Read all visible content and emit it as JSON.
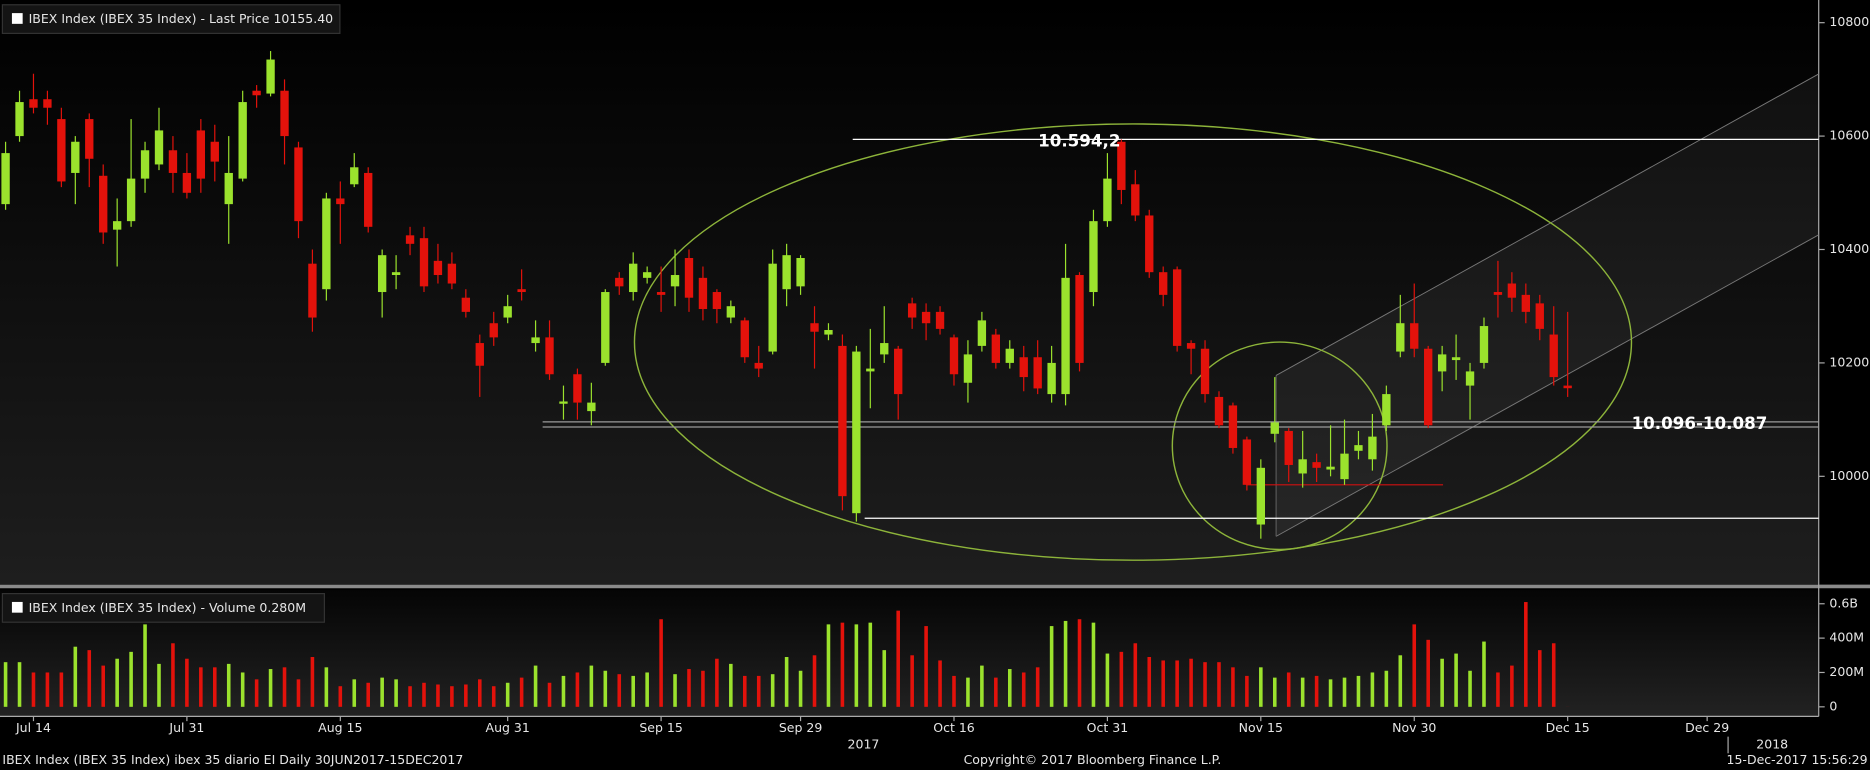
{
  "chart_data": [
    {
      "type": "candlestick",
      "title": "IBEX Index (IBEX 35 Index) - Last Price 10155.40",
      "x": [
        "2017-07-12",
        "2017-07-13",
        "2017-07-14",
        "2017-07-17",
        "2017-07-18",
        "2017-07-19",
        "2017-07-20",
        "2017-07-21",
        "2017-07-24",
        "2017-07-25",
        "2017-07-26",
        "2017-07-27",
        "2017-07-28",
        "2017-07-31",
        "2017-08-01",
        "2017-08-02",
        "2017-08-03",
        "2017-08-04",
        "2017-08-07",
        "2017-08-08",
        "2017-08-09",
        "2017-08-10",
        "2017-08-11",
        "2017-08-14",
        "2017-08-15",
        "2017-08-16",
        "2017-08-17",
        "2017-08-18",
        "2017-08-21",
        "2017-08-22",
        "2017-08-23",
        "2017-08-24",
        "2017-08-25",
        "2017-08-28",
        "2017-08-29",
        "2017-08-30",
        "2017-08-31",
        "2017-09-01",
        "2017-09-04",
        "2017-09-05",
        "2017-09-06",
        "2017-09-07",
        "2017-09-08",
        "2017-09-11",
        "2017-09-12",
        "2017-09-13",
        "2017-09-14",
        "2017-09-15",
        "2017-09-18",
        "2017-09-19",
        "2017-09-20",
        "2017-09-21",
        "2017-09-22",
        "2017-09-25",
        "2017-09-26",
        "2017-09-27",
        "2017-09-28",
        "2017-09-29",
        "2017-10-02",
        "2017-10-03",
        "2017-10-04",
        "2017-10-05",
        "2017-10-06",
        "2017-10-09",
        "2017-10-10",
        "2017-10-11",
        "2017-10-12",
        "2017-10-13",
        "2017-10-16",
        "2017-10-17",
        "2017-10-18",
        "2017-10-19",
        "2017-10-20",
        "2017-10-23",
        "2017-10-24",
        "2017-10-25",
        "2017-10-26",
        "2017-10-27",
        "2017-10-30",
        "2017-10-31",
        "2017-11-01",
        "2017-11-02",
        "2017-11-03",
        "2017-11-06",
        "2017-11-07",
        "2017-11-08",
        "2017-11-09",
        "2017-11-10",
        "2017-11-13",
        "2017-11-14",
        "2017-11-15",
        "2017-11-16",
        "2017-11-17",
        "2017-11-20",
        "2017-11-21",
        "2017-11-22",
        "2017-11-23",
        "2017-11-24",
        "2017-11-27",
        "2017-11-28",
        "2017-11-29",
        "2017-11-30",
        "2017-12-01",
        "2017-12-04",
        "2017-12-05",
        "2017-12-06",
        "2017-12-07",
        "2017-12-08",
        "2017-12-11",
        "2017-12-12",
        "2017-12-13",
        "2017-12-14",
        "2017-12-15"
      ],
      "open": [
        10480,
        10600,
        10665,
        10665,
        10630,
        10535,
        10630,
        10530,
        10435,
        10450,
        10525,
        10550,
        10575,
        10535,
        10610,
        10590,
        10480,
        10525,
        10680,
        10675,
        10680,
        10580,
        10375,
        10330,
        10490,
        10515,
        10535,
        10325,
        10355,
        10425,
        10420,
        10380,
        10375,
        10315,
        10235,
        10270,
        10280,
        10330,
        10235,
        10245,
        10128,
        10180,
        10115,
        10200,
        10350,
        10325,
        10350,
        10325,
        10335,
        10385,
        10350,
        10325,
        10280,
        10275,
        10200,
        10220,
        10330,
        10335,
        10270,
        10250,
        10230,
        9935,
        10185,
        10215,
        10225,
        10305,
        10290,
        10290,
        10245,
        10165,
        10230,
        10250,
        10200,
        10210,
        10210,
        10145,
        10145,
        10355,
        10325,
        10450,
        10590,
        10515,
        10460,
        10360,
        10365,
        10235,
        10225,
        10140,
        10125,
        10065,
        9915,
        10075,
        10080,
        10005,
        10025,
        10012,
        9995,
        10045,
        10030,
        10090,
        10220,
        10270,
        10225,
        10185,
        10205,
        10160,
        10200,
        10325,
        10340,
        10320,
        10305,
        10250,
        10160
      ],
      "high": [
        10590,
        10680,
        10710,
        10680,
        10650,
        10600,
        10640,
        10550,
        10490,
        10630,
        10590,
        10650,
        10600,
        10570,
        10630,
        10620,
        10600,
        10680,
        10690,
        10750,
        10700,
        10590,
        10400,
        10500,
        10520,
        10570,
        10545,
        10400,
        10390,
        10440,
        10440,
        10410,
        10395,
        10330,
        10250,
        10290,
        10320,
        10365,
        10275,
        10275,
        10160,
        10190,
        10165,
        10330,
        10360,
        10395,
        10370,
        10370,
        10400,
        10400,
        10370,
        10330,
        10310,
        10280,
        10230,
        10400,
        10410,
        10390,
        10300,
        10270,
        10250,
        10230,
        10260,
        10300,
        10230,
        10315,
        10305,
        10300,
        10250,
        10240,
        10290,
        10260,
        10240,
        10230,
        10240,
        10230,
        10410,
        10360,
        10470,
        10570,
        10594.2,
        10540,
        10470,
        10370,
        10370,
        10240,
        10240,
        10150,
        10130,
        10070,
        10030,
        10175,
        10085,
        10080,
        10040,
        10090,
        10100,
        10080,
        10110,
        10160,
        10320,
        10340,
        10230,
        10230,
        10250,
        10200,
        10280,
        10380,
        10360,
        10340,
        10320,
        10300,
        10290
      ],
      "low": [
        10470,
        10590,
        10640,
        10620,
        10510,
        10480,
        10510,
        10410,
        10370,
        10440,
        10500,
        10540,
        10500,
        10490,
        10500,
        10520,
        10410,
        10520,
        10650,
        10670,
        10550,
        10420,
        10255,
        10310,
        10410,
        10510,
        10430,
        10280,
        10330,
        10390,
        10325,
        10340,
        10330,
        10280,
        10140,
        10230,
        10270,
        10310,
        10220,
        10170,
        10100,
        10100,
        10090,
        10195,
        10320,
        10310,
        10340,
        10290,
        10300,
        10290,
        10275,
        10270,
        10270,
        10200,
        10175,
        10215,
        10300,
        10320,
        10190,
        10240,
        9940,
        9920,
        10120,
        10200,
        10100,
        10260,
        10240,
        10250,
        10160,
        10130,
        10220,
        10190,
        10190,
        10150,
        10145,
        10130,
        10125,
        10185,
        10300,
        10440,
        10480,
        10450,
        10350,
        10300,
        10220,
        10180,
        10130,
        10085,
        10040,
        9975,
        9890,
        10060,
        9990,
        9980,
        9990,
        10000,
        9985,
        10030,
        10010,
        10080,
        10210,
        10210,
        10085,
        10150,
        10170,
        10100,
        10190,
        10280,
        10290,
        10270,
        10240,
        10160,
        10140
      ],
      "close": [
        10570,
        10660,
        10650,
        10650,
        10520,
        10590,
        10560,
        10430,
        10450,
        10525,
        10575,
        10610,
        10535,
        10500,
        10525,
        10555,
        10535,
        10660,
        10672,
        10735,
        10600,
        10450,
        10280,
        10490,
        10480,
        10545,
        10440,
        10390,
        10360,
        10410,
        10335,
        10355,
        10340,
        10290,
        10195,
        10245,
        10300,
        10325,
        10245,
        10180,
        10132,
        10130,
        10130,
        10325,
        10335,
        10375,
        10360,
        10320,
        10355,
        10315,
        10295,
        10295,
        10300,
        10210,
        10190,
        10375,
        10390,
        10385,
        10255,
        10258,
        9965,
        10220,
        10190,
        10235,
        10145,
        10280,
        10270,
        10260,
        10180,
        10215,
        10275,
        10200,
        10225,
        10175,
        10155,
        10200,
        10350,
        10200,
        10450,
        10525,
        10505,
        10460,
        10360,
        10320,
        10230,
        10225,
        10145,
        10090,
        10050,
        9985,
        10015,
        10095,
        10020,
        10030,
        10015,
        10017,
        10040,
        10055,
        10070,
        10145,
        10270,
        10225,
        10090,
        10215,
        10210,
        10185,
        10265,
        10320,
        10315,
        10290,
        10260,
        10175,
        10155.4
      ],
      "up_color": "#9be22d",
      "down_color": "#e3120b",
      "ylim": [
        9810,
        10840
      ],
      "yticks": [
        10000,
        10200,
        10400,
        10600,
        10800
      ],
      "xlim": [
        "2017-07-12",
        "2018-01-10"
      ],
      "xticks": [
        {
          "value": "2017-07-14",
          "label": "Jul 14"
        },
        {
          "value": "2017-07-31",
          "label": "Jul 31"
        },
        {
          "value": "2017-08-15",
          "label": "Aug 15"
        },
        {
          "value": "2017-08-31",
          "label": "Aug 31"
        },
        {
          "value": "2017-09-15",
          "label": "Sep 15"
        },
        {
          "value": "2017-09-29",
          "label": "Sep 29"
        },
        {
          "value": "2017-10-16",
          "label": "Oct 16"
        },
        {
          "value": "2017-10-31",
          "label": "Oct 31"
        },
        {
          "value": "2017-11-15",
          "label": "Nov 15"
        },
        {
          "value": "2017-11-30",
          "label": "Nov 30"
        },
        {
          "value": "2017-12-15",
          "label": "Dec 15"
        },
        {
          "value": "2017-12-29",
          "label": "Dec 29"
        }
      ],
      "year_labels": [
        "2017",
        "2018"
      ],
      "levels": [
        10594.2,
        10096,
        10087,
        9926,
        9985
      ],
      "annotations": [
        "10.594,2",
        "10.096-10.087"
      ]
    },
    {
      "type": "bar",
      "title": "IBEX Index (IBEX 35 Index) - Volume 0.280M",
      "values": [
        260,
        260,
        200,
        200,
        200,
        350,
        330,
        240,
        280,
        320,
        480,
        250,
        370,
        280,
        230,
        230,
        250,
        200,
        160,
        220,
        230,
        160,
        290,
        230,
        120,
        160,
        140,
        170,
        160,
        120,
        140,
        130,
        120,
        130,
        160,
        120,
        140,
        170,
        240,
        140,
        180,
        200,
        240,
        210,
        190,
        180,
        200,
        510,
        190,
        220,
        210,
        280,
        250,
        180,
        180,
        190,
        290,
        210,
        300,
        480,
        490,
        480,
        490,
        330,
        560,
        300,
        470,
        270,
        180,
        170,
        240,
        170,
        220,
        200,
        230,
        470,
        500,
        510,
        490,
        310,
        320,
        370,
        290,
        270,
        270,
        280,
        260,
        260,
        230,
        180,
        230,
        170,
        200,
        170,
        180,
        160,
        170,
        180,
        200,
        210,
        300,
        480,
        390,
        280,
        310,
        210,
        380,
        200,
        240,
        610,
        330,
        370,
        0.28
      ],
      "ylim": [
        0,
        680
      ],
      "yticks": [
        0,
        {
          "value": 200,
          "label": "200M"
        },
        {
          "value": 400,
          "label": "400M"
        },
        {
          "value": 600,
          "label": "0.6B"
        }
      ]
    }
  ],
  "footer": {
    "left": "IBEX Index (IBEX 35 Index) ibex 35 diario EI  Daily 30JUN2017-15DEC2017",
    "center": "Copyright© 2017 Bloomberg Finance L.P.",
    "right": "15-Dec-2017 15:56:29"
  }
}
